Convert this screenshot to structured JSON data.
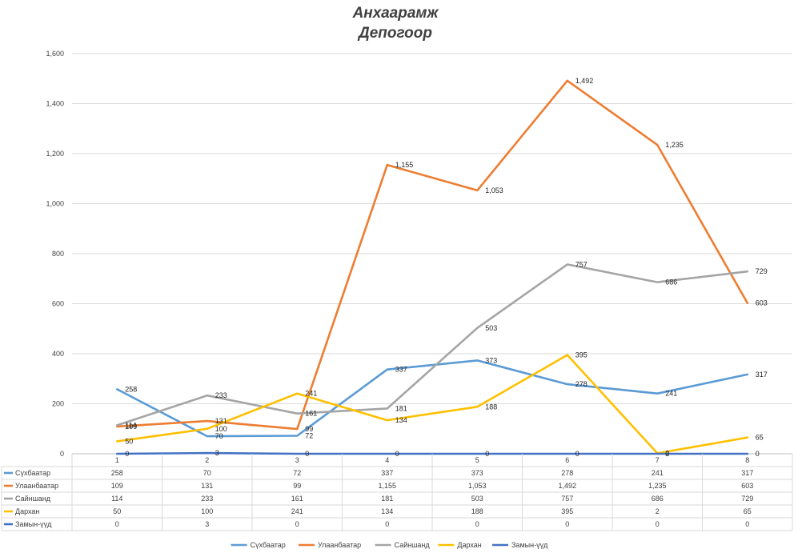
{
  "chart_data": {
    "type": "line",
    "title": "Анхаарамж",
    "subtitle": "Депогоор",
    "categories": [
      "1",
      "2",
      "3",
      "4",
      "5",
      "6",
      "7",
      "8"
    ],
    "ylim": [
      0,
      1600
    ],
    "yticks": [
      "0",
      "200",
      "400",
      "600",
      "800",
      "1,000",
      "1,200",
      "1,400",
      "1,600"
    ],
    "grid": true,
    "legend": "bottom",
    "data_table": true,
    "series": [
      {
        "name": "Сүхбаатар",
        "color": "#5B9BD5",
        "values": [
          258,
          70,
          72,
          337,
          373,
          278,
          241,
          317
        ],
        "labels": [
          "258",
          "70",
          "72",
          "337",
          "373",
          "278",
          "241",
          "317"
        ]
      },
      {
        "name": "Улаанбаатар",
        "color": "#ED7D31",
        "values": [
          109,
          131,
          99,
          1155,
          1053,
          1492,
          1235,
          603
        ],
        "labels": [
          "109",
          "131",
          "99",
          "1,155",
          "1,053",
          "1,492",
          "1,235",
          "603"
        ]
      },
      {
        "name": "Сайншанд",
        "color": "#A5A5A5",
        "values": [
          114,
          233,
          161,
          181,
          503,
          757,
          686,
          729
        ],
        "labels": [
          "114",
          "233",
          "161",
          "181",
          "503",
          "757",
          "686",
          "729"
        ]
      },
      {
        "name": "Дархан",
        "color": "#FFC000",
        "values": [
          50,
          100,
          241,
          134,
          188,
          395,
          2,
          65
        ],
        "labels": [
          "50",
          "100",
          "241",
          "134",
          "188",
          "395",
          "2",
          "65"
        ]
      },
      {
        "name": "Замын-үүд",
        "color": "#4472C4",
        "values": [
          0,
          3,
          0,
          0,
          0,
          0,
          0,
          0
        ],
        "labels": [
          "0",
          "3",
          "0",
          "0",
          "0",
          "0",
          "0",
          "0"
        ]
      }
    ]
  }
}
